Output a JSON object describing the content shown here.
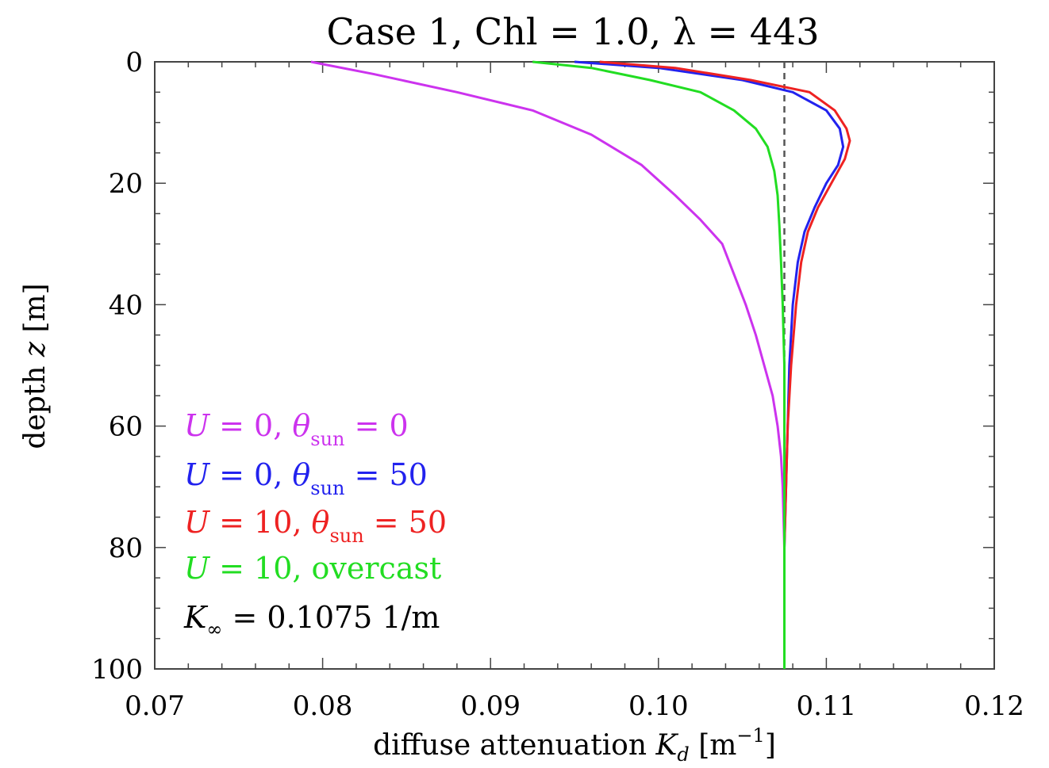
{
  "chart_data": {
    "type": "line",
    "title": "Case 1, Chl = 1.0, λ = 443",
    "xlabel": {
      "text": "diffuse attenuation",
      "symbol": "K",
      "symbol_sub": "d",
      "unit_open": "[m",
      "unit_sup": "−1",
      "unit_close": "]"
    },
    "ylabel": {
      "text": "depth",
      "symbol": "z",
      "unit": "[m]"
    },
    "xlim": [
      0.07,
      0.12
    ],
    "ylim": [
      0,
      100
    ],
    "y_inverted": true,
    "x_ticks": [
      "0.07",
      "0.08",
      "0.09",
      "0.10",
      "0.11",
      "0.12"
    ],
    "y_ticks": [
      "0",
      "20",
      "40",
      "60",
      "80",
      "100"
    ],
    "grid": false,
    "legend_position": "bottom-left",
    "reference_line": {
      "x": 0.1075,
      "style": "dashed",
      "color": "#555555"
    },
    "series": [
      {
        "name": "U = 0, θsun = 0",
        "legend": {
          "lead": "U",
          "mid1": " = 0, ",
          "sym": "θ",
          "sub": "sun",
          "tail": " = 0"
        },
        "color": "#cc33ee",
        "points": [
          [
            0.0793,
            0
          ],
          [
            0.083,
            2
          ],
          [
            0.088,
            5
          ],
          [
            0.0925,
            8
          ],
          [
            0.096,
            12
          ],
          [
            0.099,
            17
          ],
          [
            0.101,
            22
          ],
          [
            0.1025,
            26
          ],
          [
            0.1038,
            30
          ],
          [
            0.1045,
            35
          ],
          [
            0.1052,
            40
          ],
          [
            0.1058,
            45
          ],
          [
            0.1063,
            50
          ],
          [
            0.1068,
            55
          ],
          [
            0.1071,
            60
          ],
          [
            0.1073,
            65
          ],
          [
            0.1074,
            70
          ],
          [
            0.1075,
            80
          ],
          [
            0.1075,
            100
          ]
        ]
      },
      {
        "name": "U = 0, θsun = 50",
        "legend": {
          "lead": "U",
          "mid1": " = 0, ",
          "sym": "θ",
          "sub": "sun",
          "tail": " = 50"
        },
        "color": "#2222ee",
        "points": [
          [
            0.095,
            0
          ],
          [
            0.1,
            1
          ],
          [
            0.105,
            3
          ],
          [
            0.108,
            5
          ],
          [
            0.11,
            8
          ],
          [
            0.1108,
            11
          ],
          [
            0.111,
            14
          ],
          [
            0.1107,
            17
          ],
          [
            0.11,
            20
          ],
          [
            0.1093,
            24
          ],
          [
            0.1087,
            28
          ],
          [
            0.1083,
            33
          ],
          [
            0.108,
            40
          ],
          [
            0.1078,
            50
          ],
          [
            0.1077,
            60
          ],
          [
            0.1076,
            70
          ],
          [
            0.1075,
            80
          ],
          [
            0.1075,
            100
          ]
        ]
      },
      {
        "name": "U = 10, θsun = 50",
        "legend": {
          "lead": "U",
          "mid1": " = 10, ",
          "sym": "θ",
          "sub": "sun",
          "tail": " = 50"
        },
        "color": "#ee2222",
        "points": [
          [
            0.0965,
            0
          ],
          [
            0.101,
            1
          ],
          [
            0.1055,
            3
          ],
          [
            0.109,
            5
          ],
          [
            0.1105,
            8
          ],
          [
            0.1112,
            11
          ],
          [
            0.1114,
            13
          ],
          [
            0.1111,
            16
          ],
          [
            0.1103,
            20
          ],
          [
            0.1095,
            24
          ],
          [
            0.1089,
            28
          ],
          [
            0.1085,
            33
          ],
          [
            0.1082,
            40
          ],
          [
            0.1079,
            50
          ],
          [
            0.1077,
            60
          ],
          [
            0.1076,
            70
          ],
          [
            0.1075,
            80
          ],
          [
            0.1075,
            100
          ]
        ]
      },
      {
        "name": "U = 10, overcast",
        "legend": {
          "lead": "U",
          "mid1": " = 10, overcast",
          "sym": "",
          "sub": "",
          "tail": ""
        },
        "color": "#22dd22",
        "points": [
          [
            0.0925,
            0
          ],
          [
            0.096,
            1
          ],
          [
            0.0995,
            3
          ],
          [
            0.1025,
            5
          ],
          [
            0.1045,
            8
          ],
          [
            0.1058,
            11
          ],
          [
            0.1065,
            14
          ],
          [
            0.1069,
            18
          ],
          [
            0.1071,
            22
          ],
          [
            0.1072,
            27
          ],
          [
            0.1073,
            33
          ],
          [
            0.1074,
            40
          ],
          [
            0.1075,
            50
          ],
          [
            0.1075,
            100
          ]
        ]
      }
    ],
    "annotation": {
      "sym": "K",
      "sub": "∞",
      "text": " = 0.1075 1/m",
      "color": "#000000"
    }
  }
}
